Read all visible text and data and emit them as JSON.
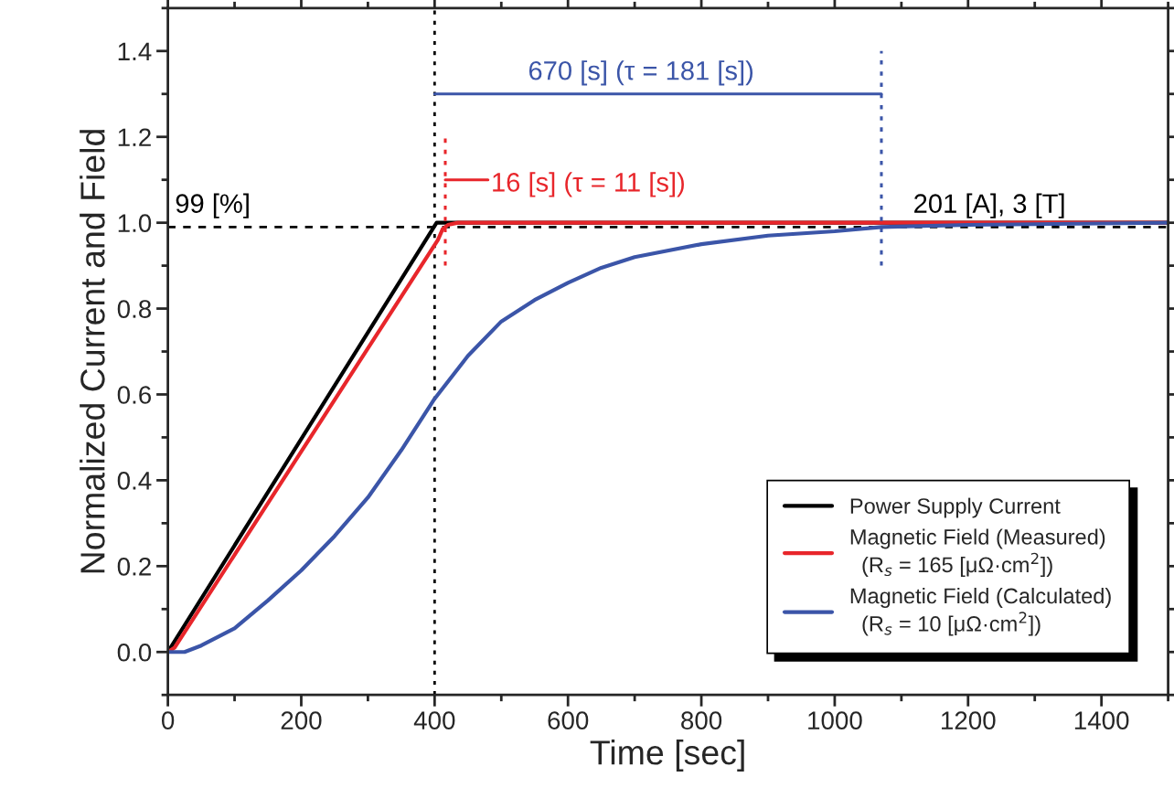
{
  "chart_data": {
    "type": "line",
    "xlabel": "Time [sec]",
    "ylabel": "Normalized Current and Field",
    "xlim": [
      0,
      1500
    ],
    "xticks": [
      0,
      200,
      400,
      600,
      800,
      1000,
      1200,
      1400
    ],
    "ylim": [
      -0.1,
      1.5
    ],
    "yticks": [
      {
        "value": 0,
        "label": "0.0"
      },
      0.2,
      0.4,
      0.6,
      0.8,
      {
        "value": 1,
        "label": "1.0"
      },
      1.2,
      1.4
    ],
    "grid": false,
    "legend": "bottom right",
    "line_style": "solid",
    "marker": "none",
    "series": [
      {
        "name": "Power Supply Current",
        "color": "#000000",
        "x": [
          0,
          403,
          410,
          1500
        ],
        "values": [
          0.0,
          1.0,
          1.0,
          1.0
        ]
      },
      {
        "name": "Magnetic Field (Measured)\n  (R$_{s}$ = 165 [μΩ·cm$^{2}$])",
        "color": "#e8262b",
        "x": [
          0,
          10,
          405,
          412,
          420,
          435,
          1500
        ],
        "values": [
          0.0,
          0.01,
          0.96,
          0.985,
          0.995,
          1.0,
          1.0
        ]
      },
      {
        "name": "Magnetic Field (Calculated)\n  (R$_{s}$ = 10 [μΩ·cm$^{2}$])",
        "color": "#3b55a8",
        "x": [
          0,
          25,
          50,
          100,
          150,
          200,
          250,
          300,
          350,
          400,
          450,
          500,
          550,
          600,
          650,
          700,
          800,
          900,
          1000,
          1070,
          1200,
          1500
        ],
        "values": [
          0.0,
          0.0,
          0.015,
          0.055,
          0.12,
          0.19,
          0.27,
          0.36,
          0.47,
          0.59,
          0.69,
          0.77,
          0.82,
          0.86,
          0.895,
          0.92,
          0.95,
          0.97,
          0.98,
          0.99,
          0.995,
          1.0
        ]
      },
      {
        "color": "#e8262b",
        "line_style": "dotted",
        "x": [
          416,
          416
        ],
        "values": [
          0.9,
          1.2
        ]
      },
      {
        "color": "#3b55a8",
        "line_style": "dotted",
        "x": [
          1070,
          1070
        ],
        "values": [
          0.9,
          1.4
        ]
      },
      {
        "color": "#e8262b",
        "x": [
          416,
          480
        ],
        "values": [
          1.1,
          1.1
        ]
      },
      {
        "color": "#3b55a8",
        "x": [
          400,
          1070
        ],
        "values": [
          1.3,
          1.3
        ]
      }
    ],
    "ref_lines": [
      {
        "axis": "y",
        "value": 0.99,
        "color": "#000000",
        "line_style": "dashed"
      },
      {
        "axis": "x",
        "value": 400,
        "color": "#000000",
        "line_style": "dotted"
      }
    ],
    "annotations": [
      "99 [%]",
      "670 [s] (τ = 181 [s])",
      "16 [s] (τ = 11 [s])",
      "201 [A], 3 [T]"
    ]
  }
}
